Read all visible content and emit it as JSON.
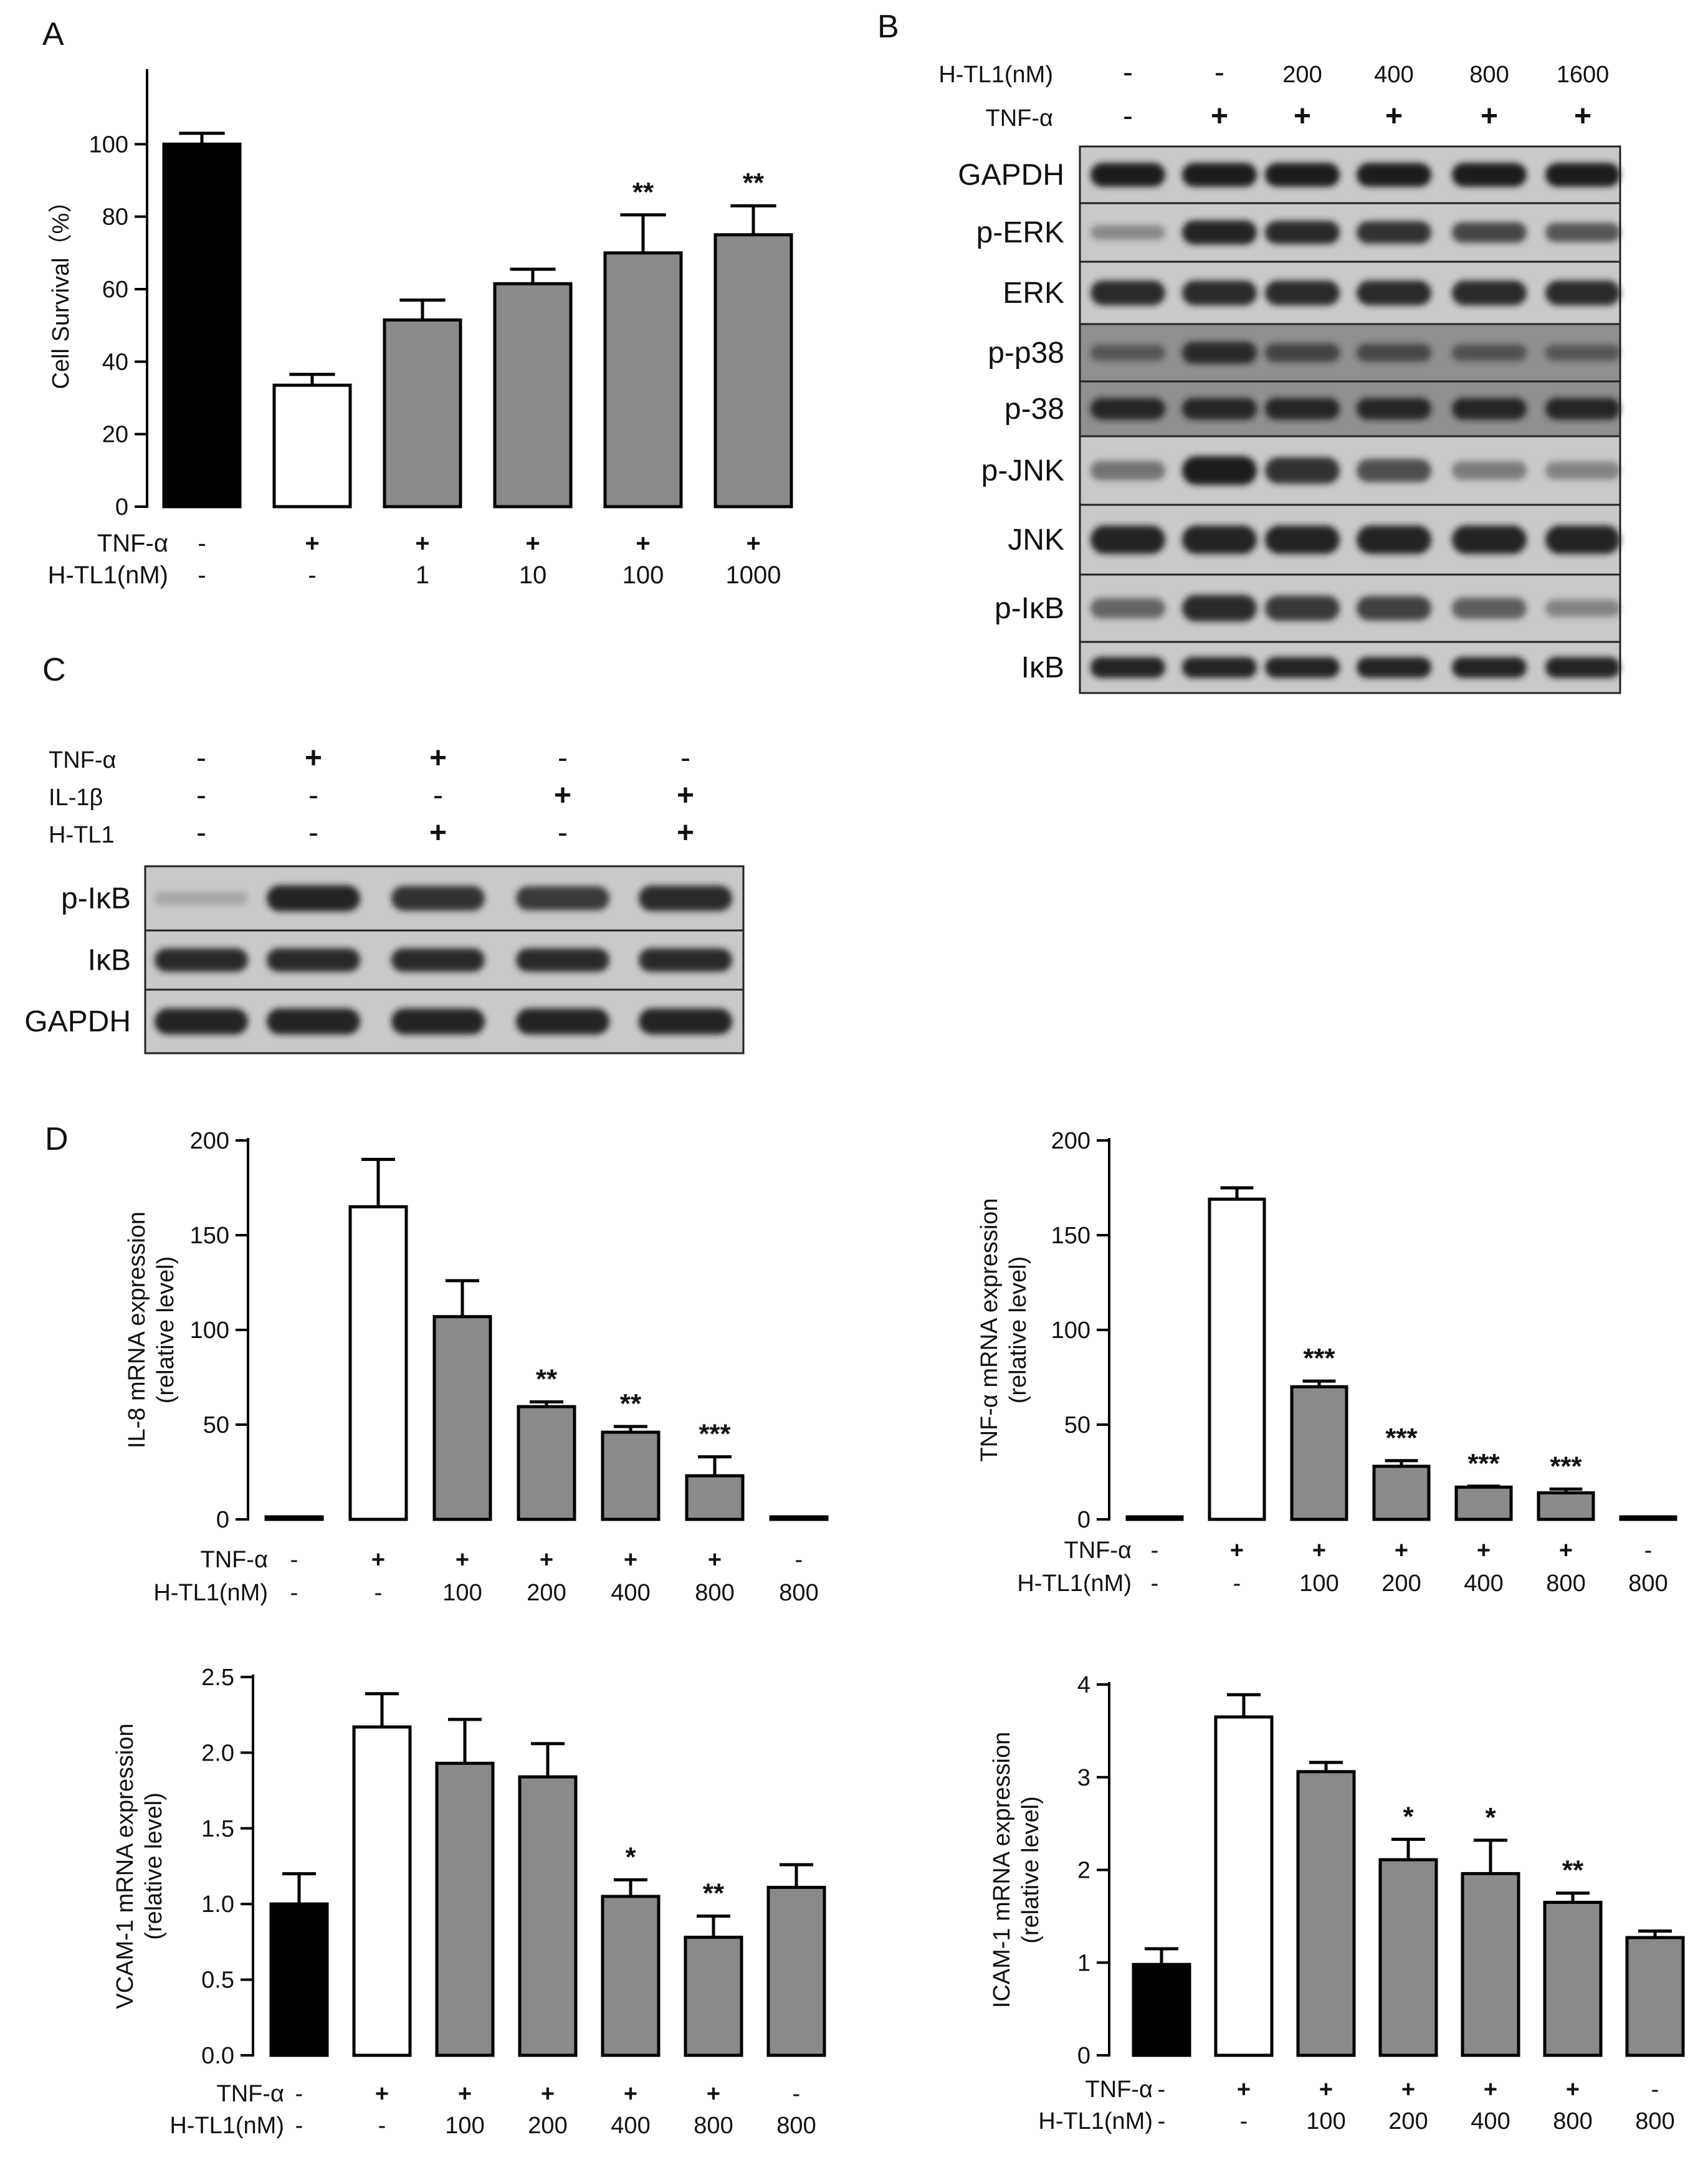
{
  "panel_labels": {
    "A": "A",
    "B": "B",
    "C": "C",
    "D": "D"
  },
  "colors": {
    "black": "#000000",
    "white": "#ffffff",
    "gray": "#8a8a8a",
    "blot_bg": "#c9c9c9",
    "blot_dark_bg": "#8f8f8f",
    "band": "#1b1b1b"
  },
  "panel_a": {
    "rows": [
      {
        "label": "TNF-α",
        "values": [
          "-",
          "+",
          "+",
          "+",
          "+",
          "+"
        ]
      },
      {
        "label": "H-TL1(nM)",
        "values": [
          "-",
          "-",
          "1",
          "10",
          "100",
          "1000"
        ]
      }
    ]
  },
  "panel_b": {
    "rows": [
      {
        "label": "H-TL1(nM)",
        "values": [
          "-",
          "-",
          "200",
          "400",
          "800",
          "1600"
        ]
      },
      {
        "label": "TNF-α",
        "values": [
          "-",
          "+",
          "+",
          "+",
          "+",
          "+"
        ]
      }
    ],
    "blots": [
      {
        "label": "GAPDH",
        "intensity": [
          1,
          1,
          1,
          1,
          1,
          1
        ],
        "dark": false
      },
      {
        "label": "p-ERK",
        "intensity": [
          0.25,
          0.95,
          0.9,
          0.85,
          0.7,
          0.6
        ],
        "dark": false
      },
      {
        "label": "ERK",
        "intensity": [
          0.9,
          0.9,
          0.9,
          0.9,
          0.9,
          0.9
        ],
        "dark": false
      },
      {
        "label": "p-p38",
        "intensity": [
          0.4,
          0.85,
          0.6,
          0.55,
          0.45,
          0.4
        ],
        "dark": true
      },
      {
        "label": "p-38",
        "intensity": [
          0.9,
          0.9,
          0.9,
          0.9,
          0.9,
          0.9
        ],
        "dark": true
      },
      {
        "label": "p-JNK",
        "intensity": [
          0.4,
          1,
          0.85,
          0.65,
          0.35,
          0.3
        ],
        "dark": false
      },
      {
        "label": "JNK",
        "intensity": [
          0.95,
          0.95,
          0.95,
          0.95,
          0.95,
          0.95
        ],
        "dark": false
      },
      {
        "label": "p-IκB",
        "intensity": [
          0.5,
          0.9,
          0.8,
          0.75,
          0.55,
          0.3
        ],
        "dark": false
      },
      {
        "label": "IκB",
        "intensity": [
          0.95,
          0.95,
          0.95,
          0.95,
          0.95,
          0.95
        ],
        "dark": false
      }
    ]
  },
  "panel_c": {
    "rows": [
      {
        "label": "TNF-α",
        "values": [
          "-",
          "+",
          "+",
          "-",
          "-"
        ]
      },
      {
        "label": "IL-1β",
        "values": [
          "-",
          "-",
          "-",
          "+",
          "+"
        ]
      },
      {
        "label": "H-TL1",
        "values": [
          "-",
          "-",
          "+",
          "-",
          "+"
        ]
      }
    ],
    "blots": [
      {
        "label": "p-IκB",
        "intensity": [
          0.05,
          0.95,
          0.85,
          0.8,
          0.9
        ]
      },
      {
        "label": "IκB",
        "intensity": [
          0.9,
          0.9,
          0.9,
          0.9,
          0.9
        ]
      },
      {
        "label": "GAPDH",
        "intensity": [
          0.95,
          0.95,
          0.95,
          0.95,
          0.95
        ]
      }
    ]
  },
  "panel_d_rows": [
    {
      "label": "TNF-α",
      "values": [
        "-",
        "+",
        "+",
        "+",
        "+",
        "+",
        "-"
      ]
    },
    {
      "label": "H-TL1(nM)",
      "values": [
        "-",
        "-",
        "100",
        "200",
        "400",
        "800",
        "800"
      ]
    }
  ],
  "chart_data": [
    {
      "panel": "A",
      "type": "bar",
      "ylabel": "Cell Survival（%）",
      "ylim": [
        0,
        120
      ],
      "yticks": [
        0,
        20,
        40,
        60,
        80,
        100
      ],
      "values": [
        100,
        33.5,
        51.5,
        61.5,
        70,
        75
      ],
      "errors": [
        3,
        3,
        5.5,
        4,
        10.5,
        8
      ],
      "fills": [
        "black",
        "white",
        "gray",
        "gray",
        "gray",
        "gray"
      ],
      "annotations": [
        "",
        "",
        "",
        "",
        "**",
        "**"
      ]
    },
    {
      "panel": "D1",
      "type": "bar",
      "ylabel": [
        "IL-8 mRNA expression",
        "(relative level)"
      ],
      "ylim": [
        0,
        200
      ],
      "yticks": [
        0,
        50,
        100,
        150,
        200
      ],
      "values": [
        1,
        165,
        107,
        59.5,
        46,
        23,
        0.5
      ],
      "errors": [
        0,
        25,
        19,
        2.5,
        3,
        10,
        0
      ],
      "fills": [
        "black",
        "white",
        "gray",
        "gray",
        "gray",
        "gray",
        "gray"
      ],
      "annotations": [
        "",
        "",
        "",
        "**",
        "**",
        "***",
        ""
      ]
    },
    {
      "panel": "D2",
      "type": "bar",
      "ylabel": [
        "TNF-α mRNA expression",
        "(relative level)"
      ],
      "ylim": [
        0,
        200
      ],
      "yticks": [
        0,
        50,
        100,
        150,
        200
      ],
      "values": [
        1,
        169,
        70,
        28,
        17,
        14,
        0.5
      ],
      "errors": [
        0,
        6,
        3,
        3,
        0.5,
        2,
        0
      ],
      "fills": [
        "black",
        "white",
        "gray",
        "gray",
        "gray",
        "gray",
        "gray"
      ],
      "annotations": [
        "",
        "",
        "***",
        "***",
        "***",
        "***",
        ""
      ]
    },
    {
      "panel": "D3",
      "type": "bar",
      "ylabel": [
        "VCAM-1 mRNA expression",
        "(relative level)"
      ],
      "ylim": [
        0,
        2.5
      ],
      "yticks": [
        0,
        0.5,
        1,
        1.5,
        2,
        2.5
      ],
      "ytick_labels": [
        "0.0",
        "0.5",
        "1.0",
        "1.5",
        "2.0",
        "2.5"
      ],
      "values": [
        1.0,
        2.17,
        1.93,
        1.84,
        1.05,
        0.78,
        1.11
      ],
      "errors": [
        0.2,
        0.22,
        0.29,
        0.22,
        0.11,
        0.14,
        0.15
      ],
      "fills": [
        "black",
        "white",
        "gray",
        "gray",
        "gray",
        "gray",
        "gray"
      ],
      "annotations": [
        "",
        "",
        "",
        "",
        "*",
        "**",
        ""
      ]
    },
    {
      "panel": "D4",
      "type": "bar",
      "ylabel": [
        "ICAM-1 mRNA expression",
        "(relative level)"
      ],
      "ylim": [
        0,
        4
      ],
      "yticks": [
        0,
        1,
        2,
        3,
        4
      ],
      "values": [
        0.98,
        3.65,
        3.06,
        2.11,
        1.96,
        1.65,
        1.27
      ],
      "errors": [
        0.17,
        0.24,
        0.1,
        0.22,
        0.36,
        0.1,
        0.07
      ],
      "fills": [
        "black",
        "white",
        "gray",
        "gray",
        "gray",
        "gray",
        "gray"
      ],
      "annotations": [
        "",
        "",
        "",
        "*",
        "*",
        "**",
        ""
      ]
    }
  ]
}
